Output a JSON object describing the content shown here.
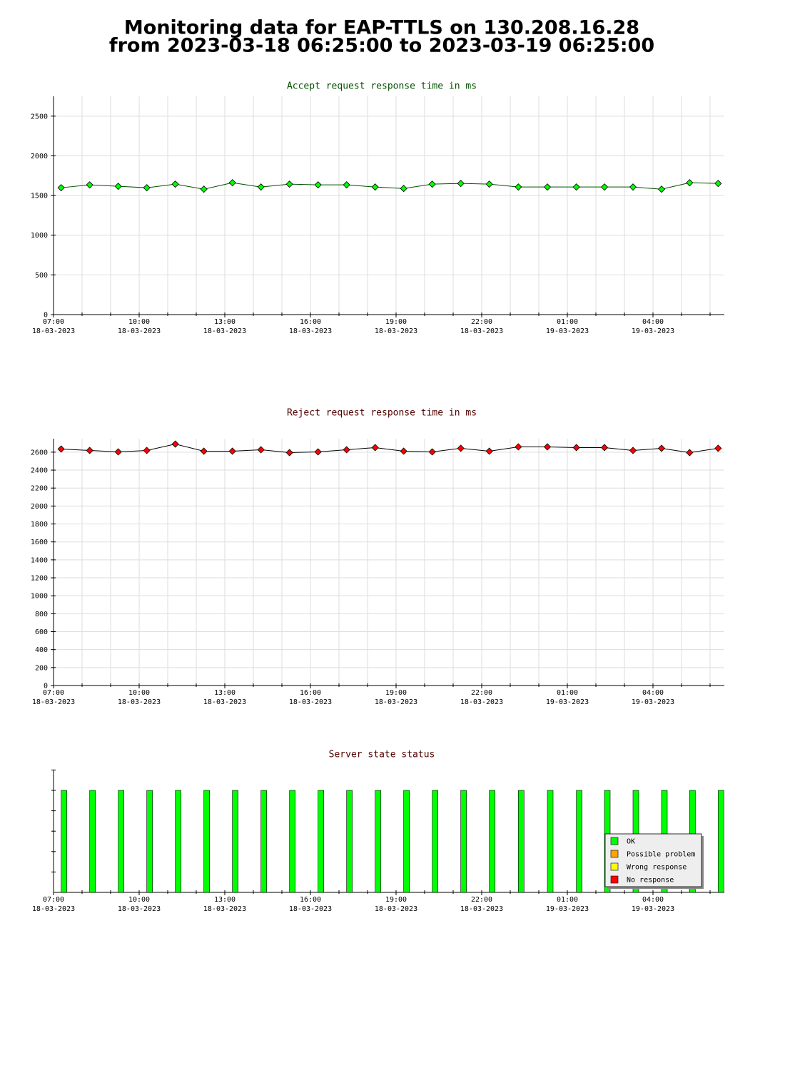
{
  "title": [
    "Monitoring data for EAP-TTLS on 130.208.16.28",
    "from 2023-03-18 06:25:00 to 2023-03-19 06:25:00"
  ],
  "chart_data": [
    {
      "type": "line",
      "title": "Accept request response time in ms",
      "title_color": "#005000",
      "x": [
        "2023-03-18 07:16",
        "2023-03-18 08:16",
        "2023-03-18 09:16",
        "2023-03-18 10:16",
        "2023-03-18 11:16",
        "2023-03-18 12:16",
        "2023-03-18 13:16",
        "2023-03-18 14:16",
        "2023-03-18 15:16",
        "2023-03-18 16:16",
        "2023-03-18 17:16",
        "2023-03-18 18:16",
        "2023-03-18 19:16",
        "2023-03-18 20:16",
        "2023-03-18 21:16",
        "2023-03-18 22:16",
        "2023-03-18 23:17",
        "2023-03-19 00:18",
        "2023-03-19 01:19",
        "2023-03-19 02:18",
        "2023-03-19 03:18",
        "2023-03-19 04:18",
        "2023-03-19 05:17",
        "2023-03-19 06:17"
      ],
      "series": [
        {
          "color": "#00ff00",
          "line_color": "#005000",
          "values": [
            1598,
            1634,
            1616,
            1598,
            1643,
            1580,
            1661,
            1607,
            1643,
            1634,
            1634,
            1607,
            1589,
            1643,
            1652,
            1643,
            1607,
            1607,
            1607,
            1607,
            1607,
            1580,
            1661,
            1652
          ]
        }
      ],
      "xlim": [
        "2023-03-18 07:00",
        "2023-03-19 06:30"
      ],
      "xticks": [
        {
          "value": "2023-03-18 07:00",
          "label": [
            "07:00",
            "18-03-2023"
          ]
        },
        {
          "value": "2023-03-18 10:00",
          "label": [
            "10:00",
            "18-03-2023"
          ]
        },
        {
          "value": "2023-03-18 13:00",
          "label": [
            "13:00",
            "18-03-2023"
          ]
        },
        {
          "value": "2023-03-18 16:00",
          "label": [
            "16:00",
            "18-03-2023"
          ]
        },
        {
          "value": "2023-03-18 19:00",
          "label": [
            "19:00",
            "18-03-2023"
          ]
        },
        {
          "value": "2023-03-18 22:00",
          "label": [
            "22:00",
            "18-03-2023"
          ]
        },
        {
          "value": "2023-03-19 01:00",
          "label": [
            "01:00",
            "19-03-2023"
          ]
        },
        {
          "value": "2023-03-19 04:00",
          "label": [
            "04:00",
            "19-03-2023"
          ]
        }
      ],
      "minor_xticks": [
        "2023-03-18 08:00",
        "2023-03-18 09:00",
        "2023-03-18 11:00",
        "2023-03-18 12:00",
        "2023-03-18 14:00",
        "2023-03-18 15:00",
        "2023-03-18 17:00",
        "2023-03-18 18:00",
        "2023-03-18 20:00",
        "2023-03-18 21:00",
        "2023-03-18 23:00",
        "2023-03-19 00:00",
        "2023-03-19 02:00",
        "2023-03-19 03:00",
        "2023-03-19 05:00",
        "2023-03-19 06:00"
      ],
      "ylim": [
        0,
        2750
      ],
      "yticks": [
        0,
        500,
        1000,
        1500,
        2000,
        2500
      ],
      "grid": true
    },
    {
      "type": "line",
      "title": "Reject request response time in ms",
      "title_color": "#500000",
      "x": [
        "2023-03-18 07:16",
        "2023-03-18 08:16",
        "2023-03-18 09:16",
        "2023-03-18 10:16",
        "2023-03-18 11:16",
        "2023-03-18 12:16",
        "2023-03-18 13:16",
        "2023-03-18 14:16",
        "2023-03-18 15:16",
        "2023-03-18 16:16",
        "2023-03-18 17:16",
        "2023-03-18 18:16",
        "2023-03-18 19:16",
        "2023-03-18 20:16",
        "2023-03-18 21:16",
        "2023-03-18 22:16",
        "2023-03-18 23:17",
        "2023-03-19 00:18",
        "2023-03-19 01:19",
        "2023-03-19 02:18",
        "2023-03-19 03:18",
        "2023-03-19 04:18",
        "2023-03-19 05:17",
        "2023-03-19 06:17"
      ],
      "series": [
        {
          "color": "#ff0000",
          "line_color": "#000000",
          "values": [
            2635,
            2619,
            2603,
            2619,
            2690,
            2611,
            2611,
            2627,
            2595,
            2603,
            2627,
            2651,
            2611,
            2603,
            2643,
            2611,
            2659,
            2659,
            2651,
            2651,
            2619,
            2643,
            2595,
            2643
          ]
        }
      ],
      "xlim": [
        "2023-03-18 07:00",
        "2023-03-19 06:30"
      ],
      "xticks": [
        {
          "value": "2023-03-18 07:00",
          "label": [
            "07:00",
            "18-03-2023"
          ]
        },
        {
          "value": "2023-03-18 10:00",
          "label": [
            "10:00",
            "18-03-2023"
          ]
        },
        {
          "value": "2023-03-18 13:00",
          "label": [
            "13:00",
            "18-03-2023"
          ]
        },
        {
          "value": "2023-03-18 16:00",
          "label": [
            "16:00",
            "18-03-2023"
          ]
        },
        {
          "value": "2023-03-18 19:00",
          "label": [
            "19:00",
            "18-03-2023"
          ]
        },
        {
          "value": "2023-03-18 22:00",
          "label": [
            "22:00",
            "18-03-2023"
          ]
        },
        {
          "value": "2023-03-19 01:00",
          "label": [
            "01:00",
            "19-03-2023"
          ]
        },
        {
          "value": "2023-03-19 04:00",
          "label": [
            "04:00",
            "19-03-2023"
          ]
        }
      ],
      "minor_xticks": [
        "2023-03-18 08:00",
        "2023-03-18 09:00",
        "2023-03-18 11:00",
        "2023-03-18 12:00",
        "2023-03-18 14:00",
        "2023-03-18 15:00",
        "2023-03-18 17:00",
        "2023-03-18 18:00",
        "2023-03-18 20:00",
        "2023-03-18 21:00",
        "2023-03-18 23:00",
        "2023-03-19 00:00",
        "2023-03-19 02:00",
        "2023-03-19 03:00",
        "2023-03-19 05:00",
        "2023-03-19 06:00"
      ],
      "ylim": [
        0,
        2750
      ],
      "yticks": [
        0,
        200,
        400,
        600,
        800,
        1000,
        1200,
        1400,
        1600,
        1800,
        2000,
        2200,
        2400,
        2600
      ],
      "grid": true
    },
    {
      "type": "status",
      "title": "Server state status",
      "title_color": "#500000",
      "x": [
        "2023-03-18 07:16",
        "2023-03-18 08:16",
        "2023-03-18 09:16",
        "2023-03-18 10:16",
        "2023-03-18 11:16",
        "2023-03-18 12:16",
        "2023-03-18 13:16",
        "2023-03-18 14:16",
        "2023-03-18 15:16",
        "2023-03-18 16:16",
        "2023-03-18 17:16",
        "2023-03-18 18:16",
        "2023-03-18 19:16",
        "2023-03-18 20:16",
        "2023-03-18 21:16",
        "2023-03-18 22:16",
        "2023-03-18 23:17",
        "2023-03-19 00:18",
        "2023-03-19 01:19",
        "2023-03-19 02:18",
        "2023-03-19 03:18",
        "2023-03-19 04:18",
        "2023-03-19 05:17",
        "2023-03-19 06:17"
      ],
      "values": [
        "OK",
        "OK",
        "OK",
        "OK",
        "OK",
        "OK",
        "OK",
        "OK",
        "OK",
        "OK",
        "OK",
        "OK",
        "OK",
        "OK",
        "OK",
        "OK",
        "OK",
        "OK",
        "OK",
        "OK",
        "OK",
        "OK",
        "OK",
        "OK"
      ],
      "states": [
        {
          "name": "OK",
          "color": "#00ff00"
        },
        {
          "name": "Possible problem",
          "color": "#ffa500"
        },
        {
          "name": "Wrong response",
          "color": "#ffff00"
        },
        {
          "name": "No response",
          "color": "#ff0000"
        }
      ],
      "legend": "lower right",
      "xlim": [
        "2023-03-18 07:00",
        "2023-03-19 06:30"
      ],
      "xticks": [
        {
          "value": "2023-03-18 07:00",
          "label": [
            "07:00",
            "18-03-2023"
          ]
        },
        {
          "value": "2023-03-18 10:00",
          "label": [
            "10:00",
            "18-03-2023"
          ]
        },
        {
          "value": "2023-03-18 13:00",
          "label": [
            "13:00",
            "18-03-2023"
          ]
        },
        {
          "value": "2023-03-18 16:00",
          "label": [
            "16:00",
            "18-03-2023"
          ]
        },
        {
          "value": "2023-03-18 19:00",
          "label": [
            "19:00",
            "18-03-2023"
          ]
        },
        {
          "value": "2023-03-18 22:00",
          "label": [
            "22:00",
            "18-03-2023"
          ]
        },
        {
          "value": "2023-03-19 01:00",
          "label": [
            "01:00",
            "19-03-2023"
          ]
        },
        {
          "value": "2023-03-19 04:00",
          "label": [
            "04:00",
            "19-03-2023"
          ]
        }
      ],
      "minor_xticks": [
        "2023-03-18 08:00",
        "2023-03-18 09:00",
        "2023-03-18 11:00",
        "2023-03-18 12:00",
        "2023-03-18 14:00",
        "2023-03-18 15:00",
        "2023-03-18 17:00",
        "2023-03-18 18:00",
        "2023-03-18 20:00",
        "2023-03-18 21:00",
        "2023-03-18 23:00",
        "2023-03-19 00:00",
        "2023-03-19 02:00",
        "2023-03-19 03:00",
        "2023-03-19 05:00",
        "2023-03-19 06:00"
      ],
      "grid": false
    }
  ]
}
